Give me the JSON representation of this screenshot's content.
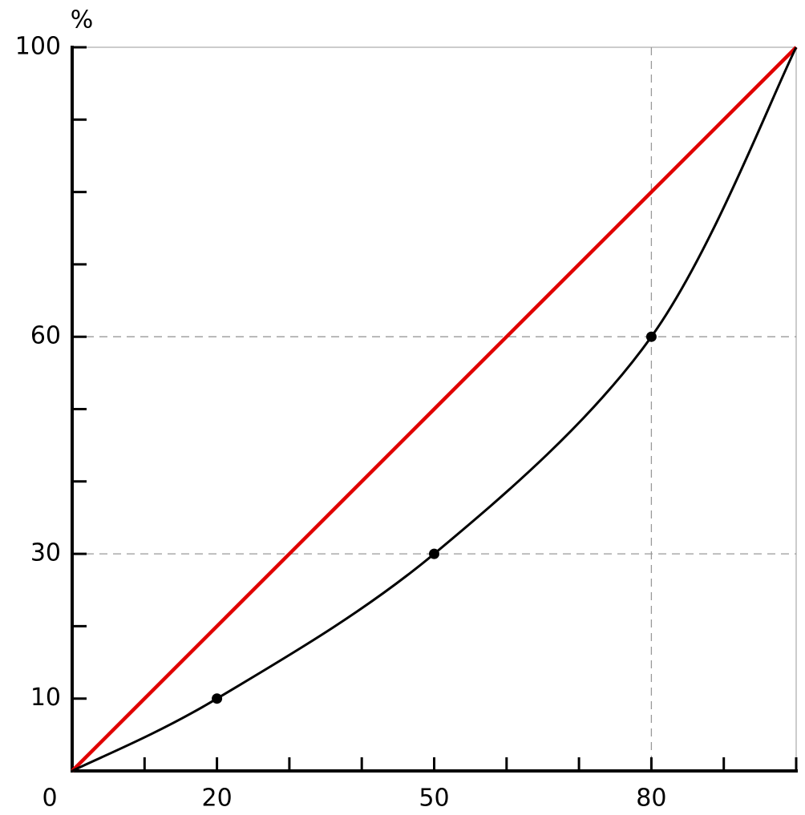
{
  "chart_data": {
    "type": "lorenz",
    "y_label": "%",
    "xlim": [
      0,
      100
    ],
    "ylim": [
      0,
      100
    ],
    "xticks": [
      0,
      20,
      50,
      80
    ],
    "xminor_ticks": [
      10,
      30,
      40,
      60,
      70,
      90,
      100
    ],
    "yticks": [
      10,
      30,
      60,
      100
    ],
    "yminor_ticks": [
      20,
      40,
      50,
      70,
      80,
      90
    ],
    "series": [
      {
        "color": "#e00000",
        "x": [
          0,
          100
        ],
        "values": [
          0,
          100
        ]
      },
      {
        "color": "#000000",
        "x": [
          0,
          20,
          50,
          80,
          100
        ],
        "values": [
          0,
          10,
          30,
          60,
          100
        ],
        "markers": [
          1,
          2,
          3
        ]
      }
    ],
    "guides": {
      "vertical": [
        3
      ],
      "horizontal": [
        2,
        3
      ]
    }
  }
}
